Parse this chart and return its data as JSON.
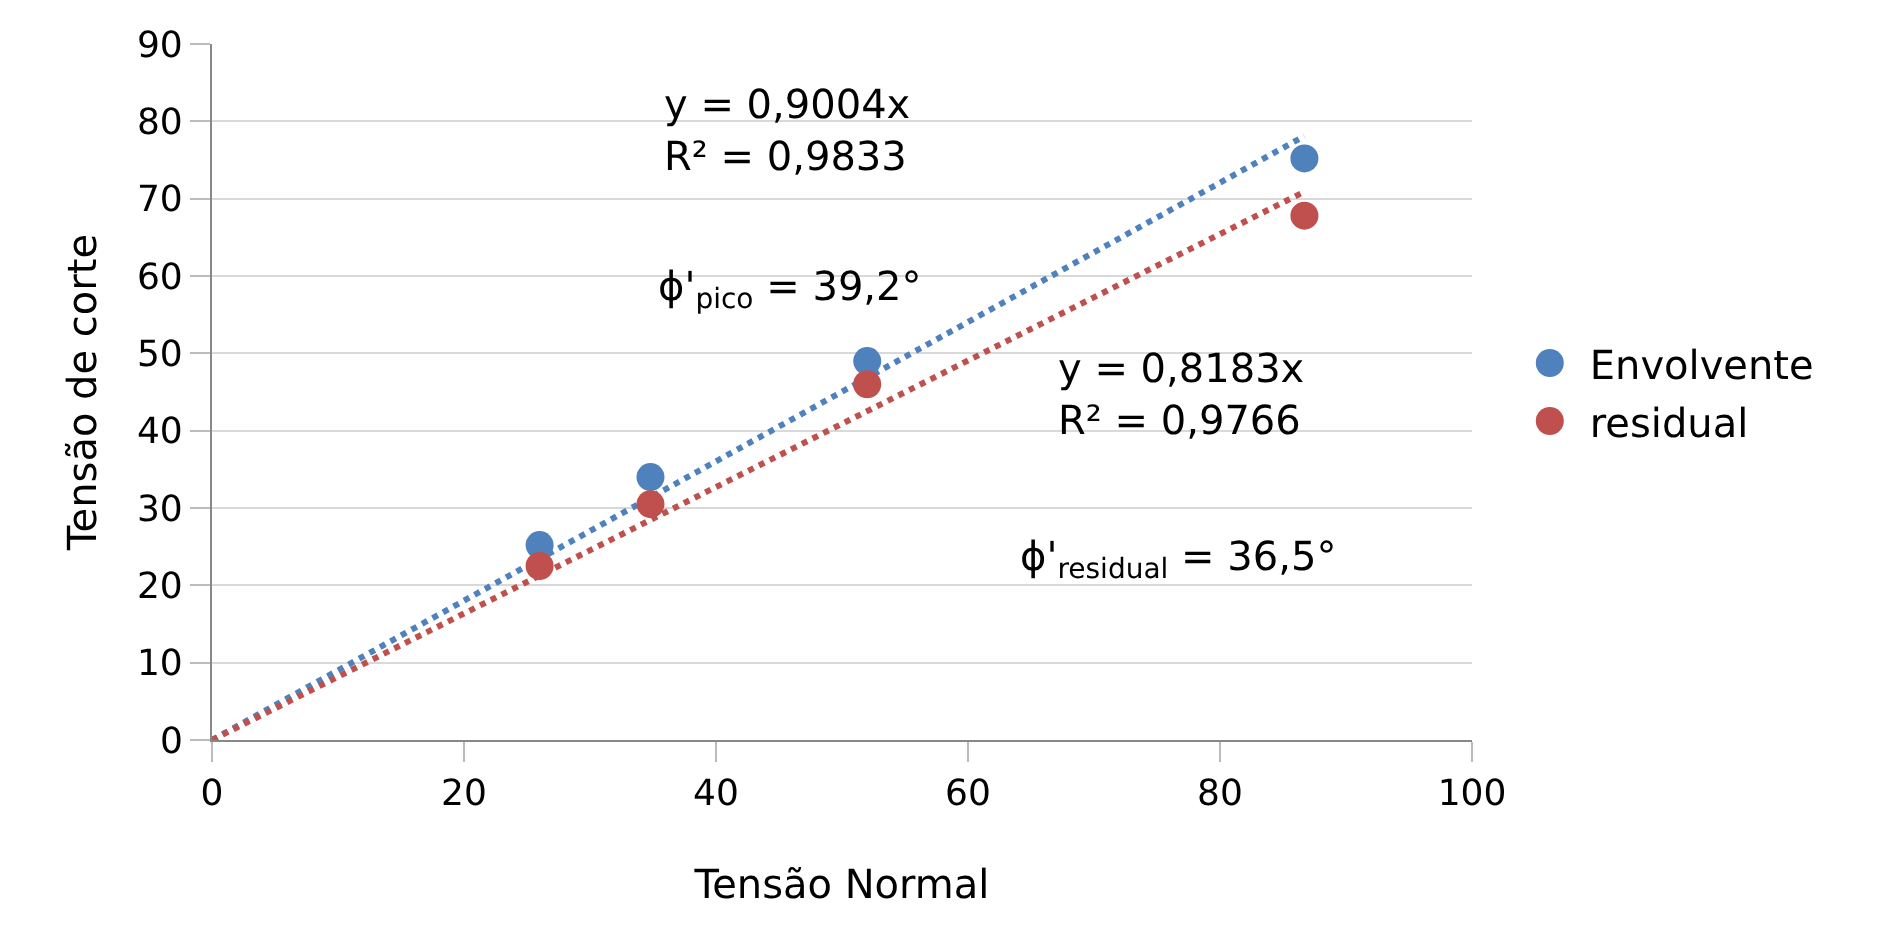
{
  "chart_data": {
    "type": "scatter",
    "xlabel": "Tensão Normal",
    "ylabel": "Tensão de corte",
    "xlim": [
      0,
      100
    ],
    "xticks": [
      0,
      20,
      40,
      60,
      80,
      100
    ],
    "ylim": [
      0,
      90
    ],
    "yticks": [
      0,
      10,
      20,
      30,
      40,
      50,
      60,
      70,
      80,
      90
    ],
    "grid": "y",
    "legend": "right",
    "marker": "circle",
    "series": [
      {
        "name": "Envolvente",
        "color": "#4f81bd",
        "x": [
          26,
          34.8,
          52,
          86.7
        ],
        "values": [
          25.2,
          34,
          49,
          75.2
        ]
      },
      {
        "name": "residual",
        "color": "#c0504d",
        "x": [
          26,
          34.8,
          52,
          86.7
        ],
        "values": [
          22.5,
          30.5,
          46,
          67.8
        ]
      },
      {
        "type": "line",
        "color": "#4f81bd",
        "line_style": "dotted",
        "marker": "none",
        "x": [
          0,
          86.7
        ],
        "values": [
          0,
          78.1
        ]
      },
      {
        "type": "line",
        "color": "#c0504d",
        "line_style": "dotted",
        "marker": "none",
        "x": [
          0,
          86.7
        ],
        "values": [
          0,
          70.9
        ]
      }
    ],
    "annotations": [
      "y = 0,9004x\nR² = 0,9833",
      "ϕ'$_{pico}$ = 39,2°",
      "y = 0,8183x\nR² = 0,9766",
      "ϕ'$_{residual}$ = 36,5°"
    ]
  }
}
